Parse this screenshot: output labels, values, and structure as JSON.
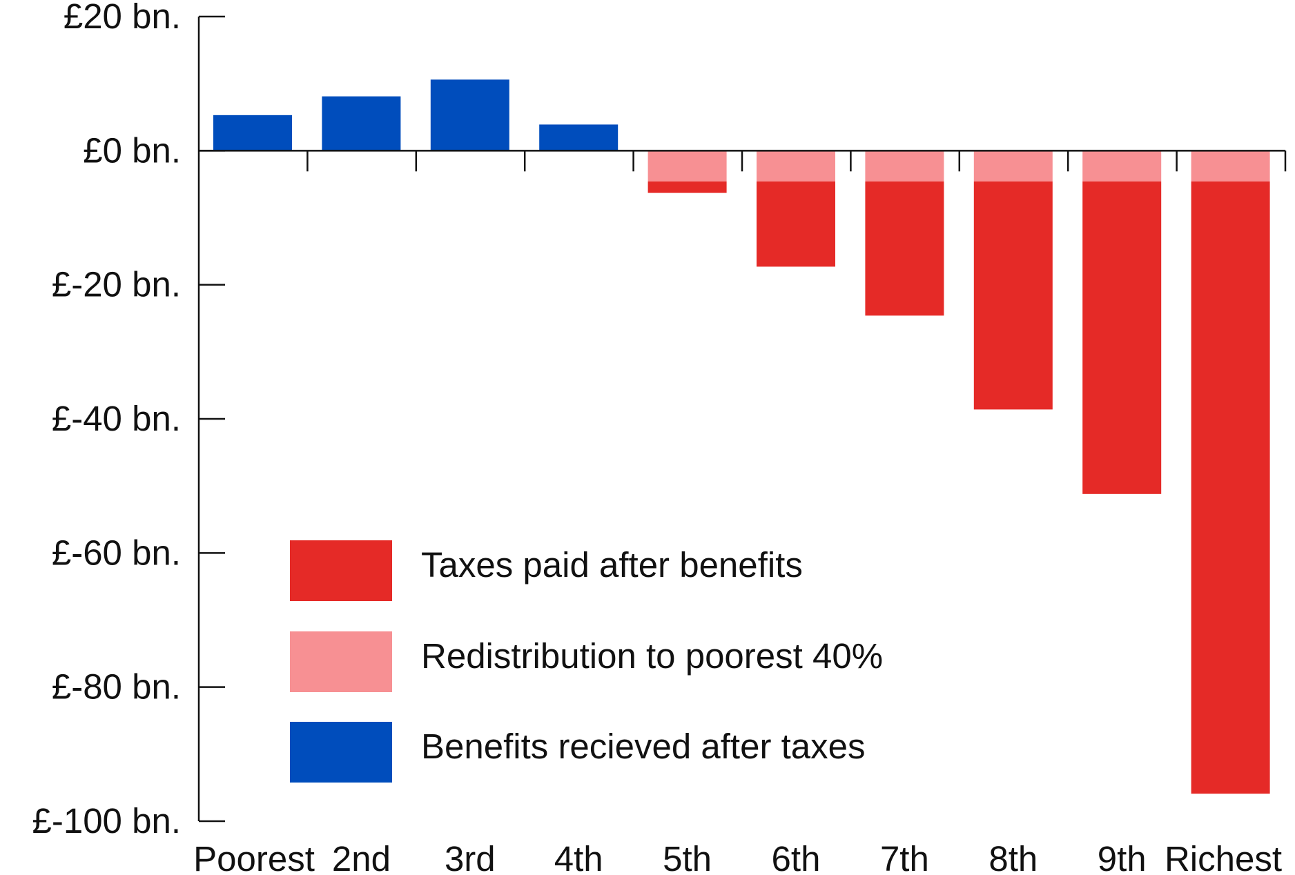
{
  "chart_data": {
    "type": "bar",
    "stacked": true,
    "title": "",
    "xlabel": "",
    "ylabel": "",
    "categories": [
      "Poorest",
      "2nd",
      "3rd",
      "4th",
      "5th",
      "6th",
      "7th",
      "8th",
      "9th",
      "Richest"
    ],
    "ylim": [
      -100,
      20
    ],
    "yticks": [
      20,
      0,
      -20,
      -40,
      -60,
      -80,
      -100
    ],
    "ytick_labels": [
      "£20 bn.",
      "£0 bn.",
      "£-20 bn.",
      "£-40 bn.",
      "£-60 bn.",
      "£-80 bn.",
      "£-100 bn."
    ],
    "grid": false,
    "legend_position": "bottom-left",
    "series": [
      {
        "name": "Benefits recieved after taxes",
        "color": "#004dbc",
        "values": [
          5.3,
          8.1,
          10.6,
          3.9,
          0,
          0,
          0,
          0,
          0,
          0
        ]
      },
      {
        "name": "Redistribution to poorest 40%",
        "color": "#f79093",
        "values": [
          0,
          0,
          0,
          0,
          -4.6,
          -4.6,
          -4.6,
          -4.6,
          -4.6,
          -4.6
        ]
      },
      {
        "name": "Taxes paid after benefits",
        "color": "#e52a27",
        "values": [
          0,
          0,
          0,
          0,
          -1.7,
          -12.7,
          -20.0,
          -34.0,
          -46.6,
          -91.3
        ]
      }
    ],
    "legend_order": [
      "Taxes paid after benefits",
      "Redistribution to poorest 40%",
      "Benefits recieved after taxes"
    ]
  }
}
